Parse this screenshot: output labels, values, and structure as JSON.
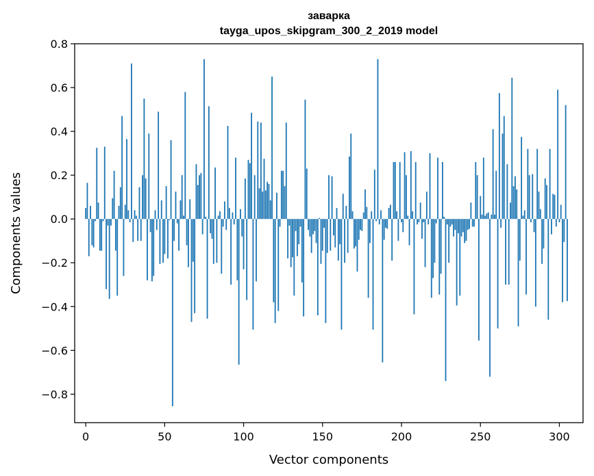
{
  "chart_data": {
    "type": "bar",
    "title": "заварка",
    "subtitle": "tayga_upos_skipgram_300_2_2019 model",
    "xlabel": "Vector components",
    "ylabel": "Components values",
    "xlim": [
      -7,
      315
    ],
    "ylim": [
      -0.93,
      0.8
    ],
    "xticks": [
      0,
      50,
      100,
      150,
      200,
      250,
      300
    ],
    "yticks": [
      0.8,
      0.6,
      0.4,
      0.2,
      0.0,
      -0.2,
      -0.4,
      -0.6,
      -0.8
    ],
    "ytick_labels": [
      "0.8",
      "0.6",
      "0.4",
      "0.2",
      "0.0",
      "−0.2",
      "−0.4",
      "−0.6",
      "−0.8"
    ],
    "xtick_labels": [
      "0",
      "50",
      "100",
      "150",
      "200",
      "250",
      "300"
    ],
    "bar_color": "#1f77b4",
    "values": [
      0.05,
      0.165,
      -0.17,
      0.06,
      -0.12,
      -0.13,
      -0.01,
      0.325,
      0.075,
      -0.145,
      -0.145,
      -0.01,
      0.33,
      -0.32,
      -0.03,
      -0.365,
      -0.03,
      0.095,
      0.22,
      -0.145,
      -0.35,
      0.06,
      0.145,
      0.47,
      -0.26,
      0.065,
      0.365,
      0.04,
      -0.015,
      0.71,
      -0.105,
      0.04,
      0.015,
      -0.1,
      0.145,
      -0.1,
      0.2,
      0.55,
      0.185,
      -0.28,
      0.39,
      -0.06,
      -0.285,
      -0.26,
      0.04,
      -0.05,
      0.49,
      -0.205,
      0.085,
      -0.2,
      -0.16,
      0.15,
      -0.18,
      -0.005,
      0.36,
      -0.855,
      -0.1,
      0.125,
      -0.02,
      -0.145,
      0.085,
      0.2,
      0.015,
      0.58,
      -0.12,
      -0.22,
      0.09,
      -0.47,
      -0.195,
      -0.43,
      0.25,
      0.155,
      0.2,
      0.21,
      -0.07,
      0.73,
      0.01,
      -0.455,
      0.515,
      -0.065,
      -0.09,
      -0.205,
      0.235,
      -0.2,
      0.015,
      0.035,
      -0.25,
      -0.035,
      0.08,
      -0.05,
      0.425,
      0.05,
      -0.3,
      0.03,
      -0.025,
      0.28,
      -0.28,
      -0.665,
      0.045,
      -0.08,
      -0.23,
      0.185,
      -0.37,
      0.27,
      0.255,
      0.485,
      -0.505,
      0.2,
      -0.285,
      0.445,
      0.14,
      0.44,
      0.125,
      0.275,
      0.13,
      0.17,
      0.16,
      0.085,
      0.65,
      -0.38,
      -0.475,
      0.12,
      -0.42,
      -0.035,
      0.22,
      0.22,
      0.15,
      0.44,
      -0.18,
      -0.03,
      -0.22,
      -0.175,
      -0.35,
      -0.055,
      -0.17,
      -0.115,
      -0.035,
      -0.29,
      -0.445,
      0.545,
      0.23,
      -0.05,
      -0.08,
      -0.155,
      -0.07,
      -0.055,
      -0.11,
      -0.44,
      0.005,
      -0.205,
      -0.145,
      -0.04,
      -0.475,
      -0.155,
      0.2,
      -0.145,
      0.195,
      -0.075,
      -0.13,
      0.05,
      -0.19,
      -0.115,
      -0.505,
      0.115,
      -0.2,
      0.06,
      -0.155,
      0.285,
      0.39,
      0.035,
      -0.135,
      -0.125,
      -0.24,
      -0.095,
      -0.05,
      -0.055,
      0.03,
      0.135,
      0.055,
      -0.36,
      -0.11,
      0.035,
      -0.505,
      0.225,
      -0.01,
      0.73,
      -0.025,
      0.04,
      -0.655,
      -0.095,
      -0.04,
      -0.045,
      0.05,
      0.065,
      -0.19,
      0.26,
      0.26,
      0.035,
      -0.1,
      0.26,
      -0.015,
      -0.06,
      0.305,
      0.2,
      0.015,
      -0.12,
      0.31,
      0.035,
      -0.435,
      0.26,
      -0.025,
      -0.015,
      0.075,
      -0.09,
      -0.015,
      -0.22,
      0.125,
      -0.025,
      0.3,
      -0.36,
      -0.27,
      -0.2,
      -0.02,
      0.28,
      -0.345,
      -0.25,
      0.26,
      0.01,
      -0.74,
      -0.025,
      -0.2,
      -0.035,
      -0.025,
      -0.08,
      -0.05,
      -0.395,
      -0.065,
      -0.35,
      -0.08,
      -0.06,
      -0.11,
      -0.1,
      -0.05,
      -0.045,
      0.075,
      -0.035,
      -0.035,
      0.26,
      0.2,
      -0.555,
      0.105,
      0.02,
      0.28,
      0.015,
      0.025,
      0.03,
      -0.72,
      0.02,
      0.41,
      0.02,
      0.22,
      -0.5,
      0.575,
      -0.04,
      0.39,
      0.47,
      -0.3,
      0.25,
      -0.3,
      0.075,
      0.645,
      0.15,
      0.195,
      0.135,
      -0.49,
      -0.19,
      0.375,
      0.015,
      0.04,
      -0.345,
      0.32,
      0.2,
      -0.015,
      0.205,
      -0.06,
      -0.4,
      0.32,
      0.125,
      0.045,
      -0.205,
      -0.135,
      0.185,
      0.155,
      -0.46,
      0.32,
      -0.07,
      0.115,
      0.11,
      -0.035,
      0.59,
      -0.015,
      0.065,
      -0.38,
      -0.105,
      0.52,
      -0.375
    ]
  }
}
